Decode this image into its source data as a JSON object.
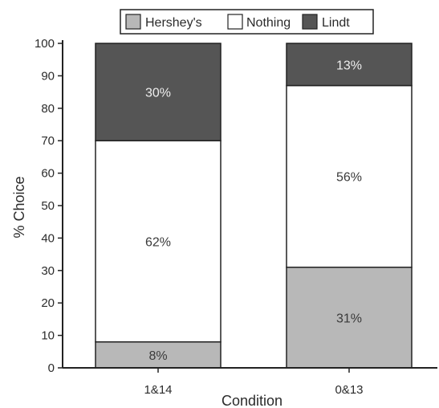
{
  "chart_data": {
    "type": "bar",
    "stacked": true,
    "categories": [
      "1&14",
      "0&13"
    ],
    "series": [
      {
        "name": "Hershey's",
        "values": [
          8,
          31
        ],
        "labels": [
          "8%",
          "31%"
        ],
        "color": "#b8b8b8"
      },
      {
        "name": "Nothing",
        "values": [
          62,
          56
        ],
        "labels": [
          "62%",
          "56%"
        ],
        "color": "#ffffff"
      },
      {
        "name": "Lindt",
        "values": [
          30,
          13
        ],
        "labels": [
          "30%",
          "13%"
        ],
        "color": "#555555"
      }
    ],
    "xlabel": "Condition",
    "ylabel": "% Choice",
    "ylim": [
      0,
      100
    ],
    "yticks": [
      0,
      10,
      20,
      30,
      40,
      50,
      60,
      70,
      80,
      90,
      100
    ],
    "legend_position": "top",
    "grid": false
  }
}
